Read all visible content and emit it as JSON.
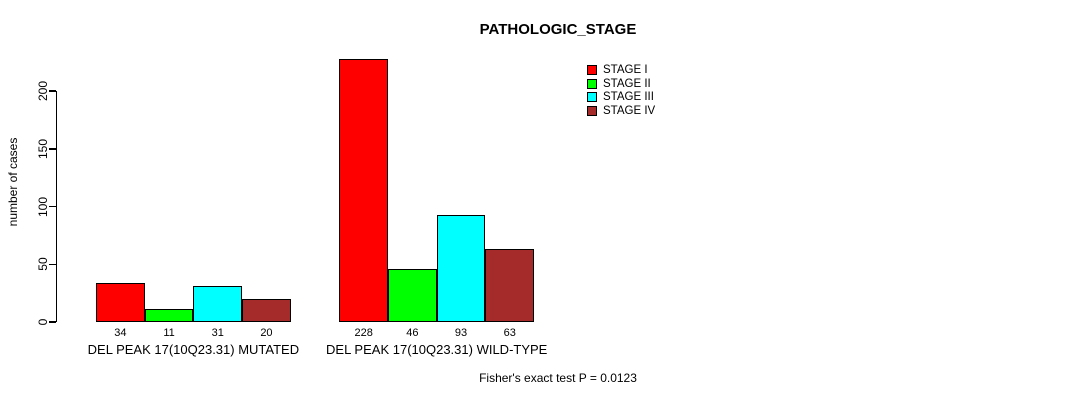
{
  "chart_data": {
    "type": "bar",
    "title": "PATHOLOGIC_STAGE",
    "xlabel": "",
    "ylabel": "number of cases",
    "ylim": [
      0,
      200
    ],
    "yticks": [
      0,
      50,
      100,
      150,
      200
    ],
    "grid": false,
    "legend_position": "top-right",
    "bar_value_labels": true,
    "categories": [
      "DEL PEAK 17(10Q23.31) MUTATED",
      "DEL PEAK 17(10Q23.31) WILD-TYPE"
    ],
    "series": [
      {
        "name": "STAGE I",
        "color": "#ff0000",
        "values": [
          34,
          228
        ]
      },
      {
        "name": "STAGE II",
        "color": "#00ff00",
        "values": [
          11,
          46
        ]
      },
      {
        "name": "STAGE III",
        "color": "#00ffff",
        "values": [
          31,
          93
        ]
      },
      {
        "name": "STAGE IV",
        "color": "#a52a2a",
        "values": [
          20,
          63
        ]
      }
    ],
    "footnote": "Fisher's exact test P = 0.0123",
    "colors": {
      "background": "#ffffff",
      "axis": "#000000",
      "text": "#000000"
    }
  }
}
